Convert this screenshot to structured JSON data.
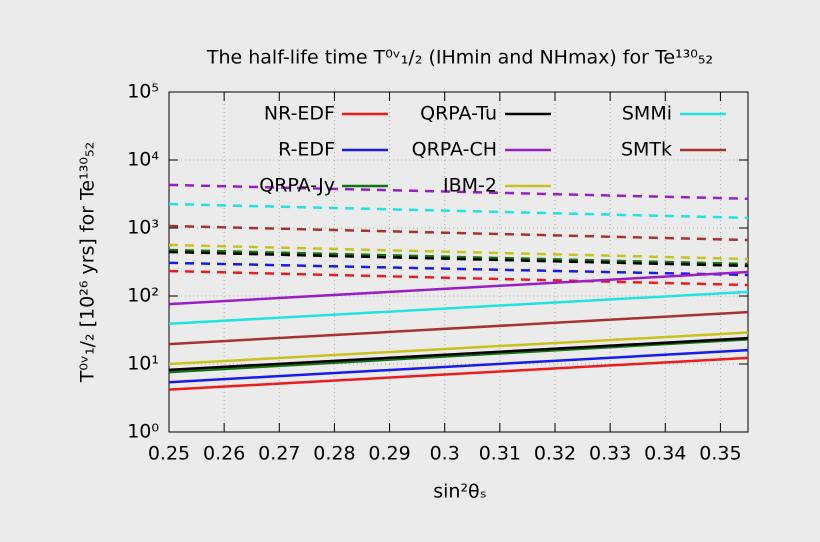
{
  "chart_data": {
    "type": "line",
    "title": "The half-life time T⁰ᵛ₁/₂ (IHmin and NHmax) for Te¹³⁰₅₂",
    "x_label": "sin²θₛ",
    "y_label": "T⁰ᵛ₁/₂ [10²⁶ yrs] for Te¹³⁰₅₂",
    "x": [
      0.25,
      0.355
    ],
    "xlim": [
      0.25,
      0.355
    ],
    "xticks": [
      0.25,
      0.26,
      0.27,
      0.28,
      0.29,
      0.3,
      0.31,
      0.32,
      0.33,
      0.34,
      0.35
    ],
    "ylim": [
      1,
      100000
    ],
    "log_y": true,
    "grid": true,
    "yticks": [
      {
        "value": 1,
        "label": "10⁰"
      },
      {
        "value": 10,
        "label": "10¹"
      },
      {
        "value": 100,
        "label": "10²"
      },
      {
        "value": 1000,
        "label": "10³"
      },
      {
        "value": 10000,
        "label": "10⁴"
      },
      {
        "value": 100000,
        "label": "10⁵"
      }
    ],
    "series": [
      {
        "name": "NR-EDF",
        "color": "#ee1c1c",
        "values": [
          4.2,
          12.3
        ],
        "values_nhmax": [
          233,
          145
        ]
      },
      {
        "name": "R-EDF",
        "color": "#1a1aee",
        "values": [
          5.4,
          16
        ],
        "values_nhmax": [
          307,
          204
        ]
      },
      {
        "name": "QRPA-Jy",
        "color": "#127412",
        "values": [
          7.6,
          23
        ],
        "values_nhmax": [
          475,
          295
        ]
      },
      {
        "name": "QRPA-Tu",
        "color": "#000000",
        "values": [
          8.2,
          24
        ],
        "values_nhmax": [
          443,
          277
        ]
      },
      {
        "name": "QRPA-CH",
        "color": "#9a1ec8",
        "values": [
          76,
          225
        ],
        "values_nhmax": [
          4300,
          2690
        ]
      },
      {
        "name": "IBM-2",
        "color": "#c8c21e",
        "values": [
          10,
          29
        ],
        "values_nhmax": [
          563,
          350
        ]
      },
      {
        "name": "SMMi",
        "color": "#22e2e2",
        "values": [
          39,
          115
        ],
        "values_nhmax": [
          2250,
          1410
        ]
      },
      {
        "name": "SMTk",
        "color": "#a83232",
        "values": [
          19.6,
          58
        ],
        "values_nhmax": [
          1070,
          665
        ]
      }
    ]
  }
}
